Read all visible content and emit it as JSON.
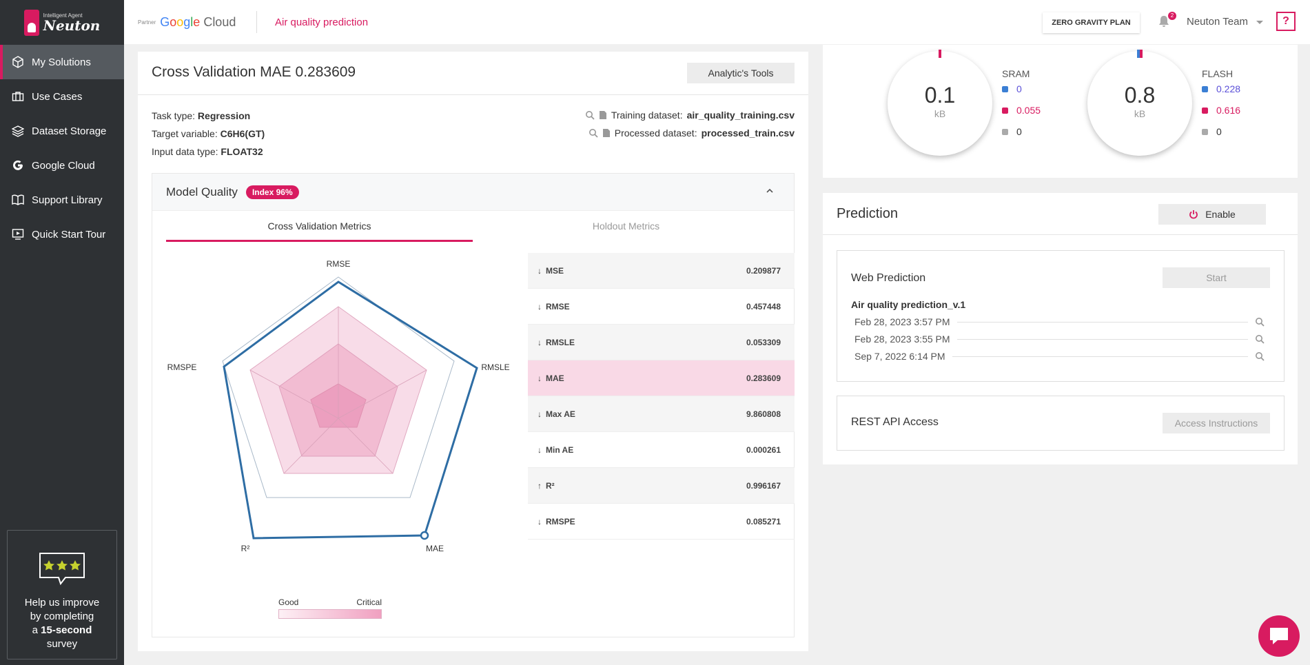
{
  "app": {
    "logo_sub": "Intelligent Agent",
    "logo_name": "Neuton"
  },
  "sidebar": {
    "items": [
      {
        "label": "My Solutions",
        "icon": "cube-icon",
        "active": true
      },
      {
        "label": "Use Cases",
        "icon": "briefcase-icon"
      },
      {
        "label": "Dataset Storage",
        "icon": "layers-icon"
      },
      {
        "label": "Google Cloud",
        "icon": "google-icon"
      },
      {
        "label": "Support Library",
        "icon": "book-icon"
      },
      {
        "label": "Quick Start Tour",
        "icon": "presentation-icon"
      }
    ],
    "survey": {
      "line1": "Help us improve",
      "line2": "by completing",
      "line3_prefix": "a",
      "line3_bold": "15-second",
      "line4": "survey"
    }
  },
  "topbar": {
    "partner_label": "Partner",
    "google": {
      "g": "G",
      "o1": "o",
      "o2": "o",
      "g2": "g",
      "l": "l",
      "e": "e",
      "cloud": " Cloud"
    },
    "breadcrumb": "Air quality prediction",
    "plan_button": "ZERO GRAVITY PLAN",
    "notification_count": "2",
    "user_name": "Neuton Team",
    "help_label": "?"
  },
  "summary": {
    "title": "Cross Validation MAE 0.283609",
    "tools_button": "Analytic's Tools",
    "task_type_label": "Task type:",
    "task_type": "Regression",
    "target_label": "Target variable:",
    "target": "C6H6(GT)",
    "input_type_label": "Input data type:",
    "input_type": "FLOAT32",
    "training_label": "Training dataset:",
    "training": "air_quality_training.csv",
    "processed_label": "Processed dataset:",
    "processed": "processed_train.csv"
  },
  "model_quality": {
    "title": "Model Quality",
    "badge": "Index 96%",
    "tabs": [
      "Cross Validation Metrics",
      "Holdout Metrics"
    ],
    "radar_axes": [
      "RMSE",
      "RMSLE",
      "MAE",
      "R²",
      "RMSPE"
    ],
    "legend_good": "Good",
    "legend_critical": "Critical",
    "metrics": [
      {
        "arrow": "↓",
        "name": "MSE",
        "value": "0.209877"
      },
      {
        "arrow": "↓",
        "name": "RMSE",
        "value": "0.457448"
      },
      {
        "arrow": "↓",
        "name": "RMSLE",
        "value": "0.053309"
      },
      {
        "arrow": "↓",
        "name": "MAE",
        "value": "0.283609",
        "highlight": true
      },
      {
        "arrow": "↓",
        "name": "Max AE",
        "value": "9.860808"
      },
      {
        "arrow": "↓",
        "name": "Min AE",
        "value": "0.000261"
      },
      {
        "arrow": "↑",
        "name": "R²",
        "value": "0.996167"
      },
      {
        "arrow": "↓",
        "name": "RMSPE",
        "value": "0.085271"
      }
    ]
  },
  "memory": {
    "sram": {
      "value": "0.1",
      "unit": "kB",
      "label": "SRAM",
      "items": [
        "0",
        "0.055",
        "0"
      ]
    },
    "flash": {
      "value": "0.8",
      "unit": "kB",
      "label": "FLASH",
      "items": [
        "0.228",
        "0.616",
        "0"
      ]
    },
    "colors": {
      "blue": "#3b7fd4",
      "pink": "#d81b60",
      "grey": "#aaaaaa"
    }
  },
  "prediction": {
    "title": "Prediction",
    "enable_button": "Enable",
    "web_title": "Web Prediction",
    "start_button": "Start",
    "model_name": "Air quality prediction_v.1",
    "runs": [
      "Feb 28, 2023 3:57 PM",
      "Feb 28, 2023 3:55 PM",
      "Sep 7, 2022 6:14 PM"
    ],
    "rest_title": "REST API Access",
    "access_button": "Access Instructions"
  }
}
